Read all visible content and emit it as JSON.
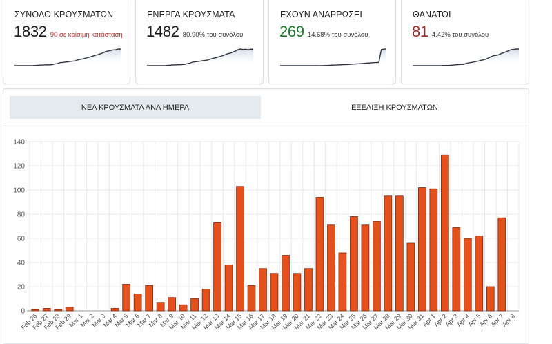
{
  "cards": [
    {
      "id": "total",
      "title": "ΣΥΝΟΛΟ ΚΡΟΥΣΜΑΤΩΝ",
      "value": "1832",
      "sub": "90 σε κρίσιμη κατάσταση",
      "value_color": "#1b1b1b",
      "sub_color": "#b3322e",
      "trend": [
        0,
        1,
        2,
        3,
        3,
        3,
        3,
        5,
        27,
        41,
        62,
        69,
        80,
        85,
        95,
        113,
        186,
        224,
        327,
        348,
        383,
        414,
        460,
        491,
        526,
        620,
        691,
        739,
        817,
        888,
        962,
        1057,
        1152,
        1208,
        1310,
        1411,
        1540,
        1609,
        1669,
        1731,
        1751,
        1828,
        1832
      ]
    },
    {
      "id": "active",
      "title": "ΕΝΕΡΓΑ ΚΡΟΥΣΜΑΤΑ",
      "value": "1482",
      "sub": "80.90% του συνόλου",
      "value_color": "#1b1b1b",
      "sub_color": "#333333",
      "trend": [
        0,
        1,
        2,
        3,
        3,
        3,
        3,
        5,
        27,
        41,
        62,
        69,
        80,
        85,
        95,
        113,
        184,
        220,
        320,
        340,
        372,
        400,
        444,
        470,
        502,
        590,
        656,
        700,
        770,
        836,
        905,
        992,
        1080,
        1128,
        1224,
        1320,
        1440,
        1500,
        1460,
        1480,
        1430,
        1490,
        1482
      ]
    },
    {
      "id": "recovered",
      "title": "ΕΧΟΥΝ ΑΝΑΡΡΩΣΕΙ",
      "value": "269",
      "sub": "14.68% του συνόλου",
      "value_color": "#1e7a2e",
      "sub_color": "#333333",
      "trend": [
        0,
        0,
        0,
        0,
        0,
        0,
        0,
        0,
        0,
        0,
        0,
        0,
        0,
        0,
        0,
        0,
        1,
        2,
        4,
        5,
        7,
        9,
        10,
        12,
        14,
        16,
        18,
        19,
        22,
        25,
        28,
        30,
        33,
        36,
        40,
        42,
        45,
        48,
        50,
        52,
        260,
        268,
        269
      ]
    },
    {
      "id": "deaths",
      "title": "ΘΑΝΑΤΟΙ",
      "value": "81",
      "sub": "4.42% του συνόλου",
      "value_color": "#9e2a26",
      "sub_color": "#333333",
      "trend": [
        0,
        0,
        0,
        0,
        0,
        0,
        0,
        0,
        0,
        0,
        0,
        0,
        1,
        1,
        1,
        2,
        3,
        4,
        5,
        6,
        6,
        10,
        13,
        15,
        17,
        20,
        22,
        26,
        28,
        32,
        38,
        43,
        49,
        50,
        53,
        59,
        63,
        68,
        73,
        78,
        79,
        81,
        81
      ]
    }
  ],
  "tabs": [
    {
      "id": "daily",
      "label": "ΝΕΑ ΚΡΟΥΣΜΑΤΑ ΑΝΑ ΗΜΕΡΑ",
      "active": true
    },
    {
      "id": "evolution",
      "label": "ΕΞΕΛΙΞΗ ΚΡΟΥΣΜΑΤΩΝ",
      "active": false
    }
  ],
  "colors": {
    "bar_fill": "#e4511c",
    "bar_stroke": "#7a2a10",
    "grid": "#e8e8ec",
    "axis": "#999999",
    "tab_active_bg": "#e4ebef",
    "spark_line": "#2d3440"
  },
  "chart_data": {
    "type": "bar",
    "title": "ΝΕΑ ΚΡΟΥΣΜΑΤΑ ΑΝΑ ΗΜΕΡΑ",
    "xlabel": "",
    "ylabel": "",
    "ylim": [
      0,
      140
    ],
    "yticks": [
      0,
      20,
      40,
      60,
      80,
      100,
      120,
      140
    ],
    "grid": true,
    "legend": "none",
    "categories": [
      "Feb 26",
      "Feb 27",
      "Feb 28",
      "Feb 29",
      "Mar 1",
      "Mar 2",
      "Mar 3",
      "Mar 4",
      "Mar 5",
      "Mar 6",
      "Mar 7",
      "Mar 8",
      "Mar 9",
      "Mar 10",
      "Mar 11",
      "Mar 12",
      "Mar 13",
      "Mar 14",
      "Mar 15",
      "Mar 16",
      "Mar 17",
      "Mar 18",
      "Mar 19",
      "Mar 20",
      "Mar 21",
      "Mar 22",
      "Mar 23",
      "Mar 24",
      "Mar 25",
      "Mar 26",
      "Mar 27",
      "Mar 28",
      "Mar 29",
      "Mar 30",
      "Mar 31",
      "Apr 1",
      "Apr 2",
      "Apr 3",
      "Apr 4",
      "Apr 5",
      "Apr 6",
      "Apr 7",
      "Apr 8"
    ],
    "values": [
      1,
      2,
      1,
      3,
      0,
      0,
      0,
      2,
      22,
      14,
      21,
      7,
      11,
      5,
      10,
      18,
      73,
      38,
      103,
      21,
      35,
      31,
      46,
      31,
      35,
      94,
      71,
      48,
      78,
      71,
      74,
      95,
      95,
      56,
      102,
      101,
      129,
      69,
      60,
      62,
      20,
      77,
      0
    ]
  }
}
